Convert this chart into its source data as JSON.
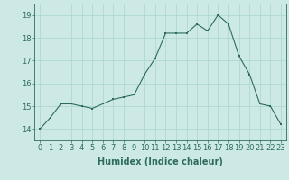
{
  "x": [
    0,
    1,
    2,
    3,
    4,
    5,
    6,
    7,
    8,
    9,
    10,
    11,
    12,
    13,
    14,
    15,
    16,
    17,
    18,
    19,
    20,
    21,
    22,
    23
  ],
  "y": [
    14.0,
    14.5,
    15.1,
    15.1,
    15.0,
    14.9,
    15.1,
    15.3,
    15.4,
    15.5,
    16.4,
    17.1,
    18.2,
    18.2,
    18.2,
    18.6,
    18.3,
    19.0,
    18.6,
    17.2,
    16.4,
    15.1,
    15.0,
    14.2
  ],
  "line_color": "#2e6b5e",
  "marker": "s",
  "marker_size": 2.0,
  "bg_color": "#cce9e5",
  "grid_color": "#b0d8d3",
  "xlabel": "Humidex (Indice chaleur)",
  "xlabel_fontsize": 7,
  "ylim": [
    13.5,
    19.5
  ],
  "xlim": [
    -0.5,
    23.5
  ],
  "yticks": [
    14,
    15,
    16,
    17,
    18,
    19
  ],
  "xticks": [
    0,
    1,
    2,
    3,
    4,
    5,
    6,
    7,
    8,
    9,
    10,
    11,
    12,
    13,
    14,
    15,
    16,
    17,
    18,
    19,
    20,
    21,
    22,
    23
  ],
  "tick_fontsize": 6.0
}
